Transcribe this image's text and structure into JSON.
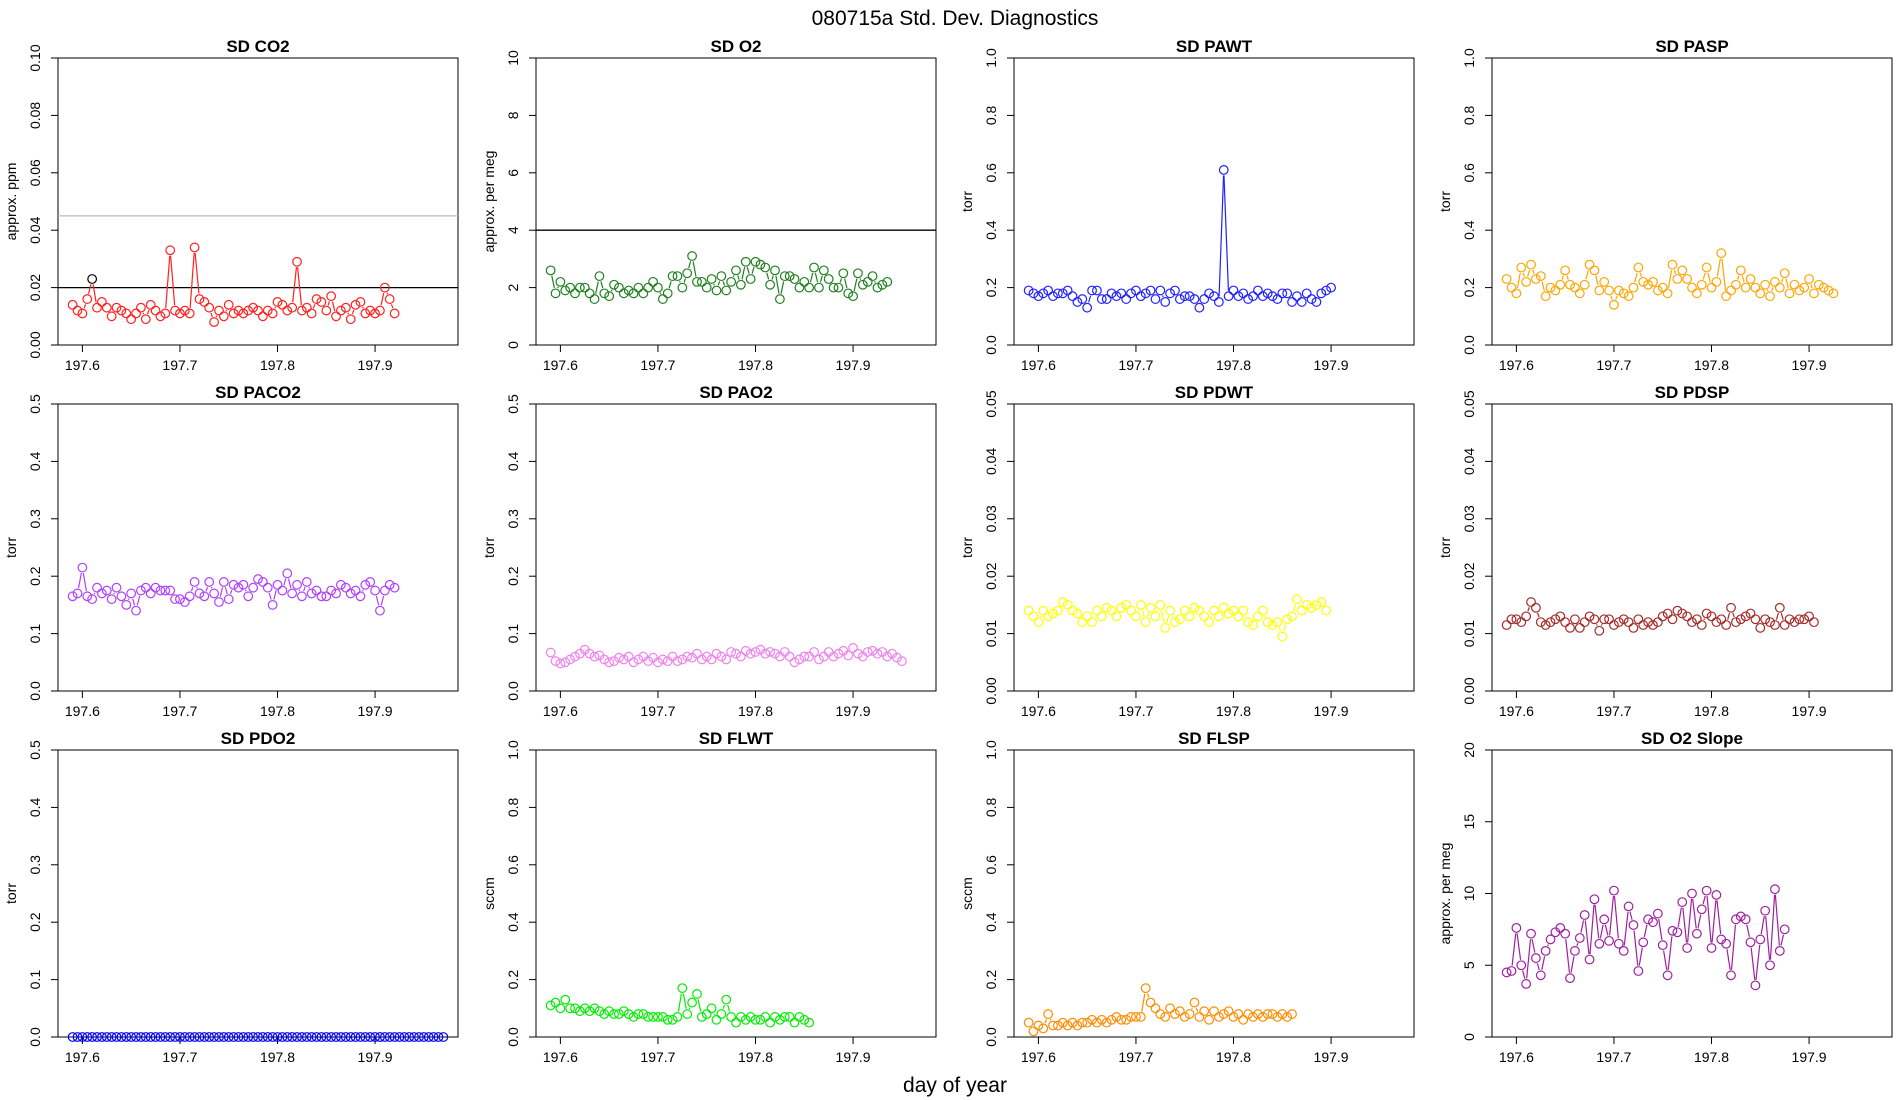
{
  "main_title": "080715a   Std. Dev. Diagnostics",
  "xlabel": "day of year",
  "colors": {
    "co2": "#ff2020",
    "o2": "#208020",
    "pawt": "#2020ff",
    "pasp": "#ffa500",
    "paco2": "#b040ff",
    "pao2": "#ee82ee",
    "pdwt": "#ffff00",
    "pdsp": "#a52a2a",
    "pdo2": "#0000ff",
    "flwt": "#00ee00",
    "flsp": "#ff8c00",
    "o2slope": "#a020a0"
  },
  "chart_data": [
    {
      "type": "line",
      "title": "SD CO2",
      "ylabel": "approx. ppm",
      "xlim": [
        197.575,
        197.985
      ],
      "ylim": [
        0,
        0.1
      ],
      "xticks": [
        "197.6",
        "197.7",
        "197.8",
        "197.9"
      ],
      "yticks": [
        "0.00",
        "0.02",
        "0.04",
        "0.06",
        "0.08",
        "0.10"
      ],
      "hlines": [
        {
          "y": 0.02,
          "color": "#000000"
        },
        {
          "y": 0.045,
          "color": "#bbbbbb"
        }
      ],
      "color": "co2",
      "x0": 197.59,
      "dx": 0.005,
      "values": [
        0.014,
        0.012,
        0.011,
        0.016,
        0.023,
        0.013,
        0.015,
        0.013,
        0.01,
        0.013,
        0.012,
        0.011,
        0.009,
        0.011,
        0.013,
        0.009,
        0.014,
        0.012,
        0.01,
        0.011,
        0.033,
        0.012,
        0.011,
        0.012,
        0.011,
        0.034,
        0.016,
        0.015,
        0.013,
        0.008,
        0.012,
        0.01,
        0.014,
        0.011,
        0.012,
        0.011,
        0.012,
        0.013,
        0.012,
        0.01,
        0.012,
        0.011,
        0.015,
        0.014,
        0.012,
        0.013,
        0.029,
        0.012,
        0.013,
        0.011,
        0.016,
        0.015,
        0.012,
        0.017,
        0.01,
        0.012,
        0.013,
        0.009,
        0.014,
        0.015,
        0.011,
        0.012,
        0.011,
        0.012,
        0.02,
        0.016,
        0.011
      ],
      "special": [
        {
          "index": 4,
          "color": "#000000"
        }
      ]
    },
    {
      "type": "line",
      "title": "SD O2",
      "ylabel": "approx. per meg",
      "xlim": [
        197.575,
        197.985
      ],
      "ylim": [
        0,
        10
      ],
      "xticks": [
        "197.6",
        "197.7",
        "197.8",
        "197.9"
      ],
      "yticks": [
        "0",
        "2",
        "4",
        "6",
        "8",
        "10"
      ],
      "hlines": [
        {
          "y": 4,
          "color": "#000000"
        }
      ],
      "color": "o2",
      "x0": 197.59,
      "dx": 0.005,
      "values": [
        2.6,
        1.8,
        2.2,
        1.9,
        2.0,
        1.8,
        2.0,
        2.0,
        1.8,
        1.6,
        2.4,
        1.8,
        1.7,
        2.1,
        2.0,
        1.8,
        1.9,
        1.8,
        2.0,
        1.8,
        2.0,
        2.2,
        2.0,
        1.6,
        1.8,
        2.4,
        2.4,
        2.0,
        2.5,
        3.1,
        2.2,
        2.2,
        2.0,
        2.3,
        1.9,
        2.4,
        1.9,
        2.2,
        2.6,
        2.1,
        2.9,
        2.3,
        2.9,
        2.8,
        2.7,
        2.1,
        2.6,
        1.6,
        2.4,
        2.4,
        2.3,
        2.0,
        2.2,
        2.0,
        2.7,
        2.0,
        2.6,
        2.3,
        2.0,
        2.0,
        2.5,
        1.8,
        1.7,
        2.5,
        2.1,
        2.2,
        2.4,
        2.0,
        2.1,
        2.2
      ],
      "special": []
    },
    {
      "type": "line",
      "title": "SD PAWT",
      "ylabel": "torr",
      "xlim": [
        197.575,
        197.985
      ],
      "ylim": [
        0,
        1
      ],
      "xticks": [
        "197.6",
        "197.7",
        "197.8",
        "197.9"
      ],
      "yticks": [
        "0.0",
        "0.2",
        "0.4",
        "0.6",
        "0.8",
        "1.0"
      ],
      "hlines": [],
      "color": "pawt",
      "x0": 197.59,
      "dx": 0.005,
      "values": [
        0.19,
        0.18,
        0.17,
        0.18,
        0.19,
        0.17,
        0.18,
        0.18,
        0.19,
        0.17,
        0.15,
        0.16,
        0.13,
        0.19,
        0.19,
        0.16,
        0.16,
        0.18,
        0.17,
        0.18,
        0.16,
        0.18,
        0.19,
        0.17,
        0.18,
        0.19,
        0.16,
        0.19,
        0.15,
        0.18,
        0.19,
        0.16,
        0.17,
        0.17,
        0.16,
        0.13,
        0.16,
        0.18,
        0.17,
        0.15,
        0.61,
        0.17,
        0.19,
        0.17,
        0.18,
        0.16,
        0.17,
        0.19,
        0.17,
        0.18,
        0.17,
        0.16,
        0.18,
        0.18,
        0.15,
        0.17,
        0.15,
        0.18,
        0.16,
        0.15,
        0.18,
        0.19,
        0.2
      ],
      "special": []
    },
    {
      "type": "line",
      "title": "SD PASP",
      "ylabel": "torr",
      "xlim": [
        197.575,
        197.985
      ],
      "ylim": [
        0,
        1
      ],
      "xticks": [
        "197.6",
        "197.7",
        "197.8",
        "197.9"
      ],
      "yticks": [
        "0.0",
        "0.2",
        "0.4",
        "0.6",
        "0.8",
        "1.0"
      ],
      "hlines": [],
      "color": "pasp",
      "x0": 197.59,
      "dx": 0.005,
      "values": [
        0.23,
        0.2,
        0.18,
        0.27,
        0.22,
        0.28,
        0.23,
        0.24,
        0.17,
        0.2,
        0.19,
        0.21,
        0.26,
        0.21,
        0.2,
        0.18,
        0.21,
        0.28,
        0.26,
        0.19,
        0.22,
        0.19,
        0.14,
        0.19,
        0.18,
        0.17,
        0.2,
        0.27,
        0.22,
        0.21,
        0.22,
        0.19,
        0.2,
        0.18,
        0.28,
        0.23,
        0.26,
        0.23,
        0.2,
        0.18,
        0.21,
        0.27,
        0.2,
        0.22,
        0.32,
        0.17,
        0.19,
        0.21,
        0.26,
        0.2,
        0.23,
        0.2,
        0.18,
        0.21,
        0.17,
        0.22,
        0.2,
        0.25,
        0.18,
        0.21,
        0.19,
        0.2,
        0.23,
        0.18,
        0.21,
        0.2,
        0.19,
        0.18
      ],
      "special": []
    },
    {
      "type": "line",
      "title": "SD PACO2",
      "ylabel": "torr",
      "xlim": [
        197.575,
        197.985
      ],
      "ylim": [
        0,
        0.5
      ],
      "xticks": [
        "197.6",
        "197.7",
        "197.8",
        "197.9"
      ],
      "yticks": [
        "0.0",
        "0.1",
        "0.2",
        "0.3",
        "0.4",
        "0.5"
      ],
      "hlines": [],
      "color": "paco2",
      "x0": 197.59,
      "dx": 0.005,
      "values": [
        0.165,
        0.17,
        0.215,
        0.165,
        0.16,
        0.18,
        0.17,
        0.175,
        0.16,
        0.18,
        0.165,
        0.15,
        0.17,
        0.14,
        0.175,
        0.18,
        0.17,
        0.18,
        0.175,
        0.175,
        0.175,
        0.16,
        0.16,
        0.155,
        0.165,
        0.19,
        0.17,
        0.165,
        0.19,
        0.17,
        0.155,
        0.19,
        0.16,
        0.185,
        0.18,
        0.185,
        0.165,
        0.18,
        0.195,
        0.19,
        0.18,
        0.15,
        0.185,
        0.175,
        0.205,
        0.17,
        0.185,
        0.165,
        0.19,
        0.17,
        0.175,
        0.165,
        0.165,
        0.175,
        0.17,
        0.185,
        0.18,
        0.17,
        0.175,
        0.165,
        0.185,
        0.19,
        0.175,
        0.14,
        0.175,
        0.185,
        0.18
      ],
      "special": []
    },
    {
      "type": "line",
      "title": "SD PAO2",
      "ylabel": "torr",
      "xlim": [
        197.575,
        197.985
      ],
      "ylim": [
        0,
        0.5
      ],
      "xticks": [
        "197.6",
        "197.7",
        "197.8",
        "197.9"
      ],
      "yticks": [
        "0.0",
        "0.1",
        "0.2",
        "0.3",
        "0.4",
        "0.5"
      ],
      "hlines": [],
      "color": "pao2",
      "x0": 197.59,
      "dx": 0.005,
      "values": [
        0.067,
        0.052,
        0.048,
        0.05,
        0.055,
        0.06,
        0.065,
        0.072,
        0.065,
        0.06,
        0.062,
        0.055,
        0.05,
        0.052,
        0.058,
        0.055,
        0.06,
        0.05,
        0.055,
        0.06,
        0.052,
        0.058,
        0.05,
        0.055,
        0.052,
        0.06,
        0.052,
        0.055,
        0.06,
        0.058,
        0.065,
        0.055,
        0.06,
        0.055,
        0.065,
        0.06,
        0.055,
        0.068,
        0.065,
        0.06,
        0.07,
        0.065,
        0.068,
        0.072,
        0.065,
        0.068,
        0.065,
        0.06,
        0.068,
        0.06,
        0.05,
        0.055,
        0.06,
        0.06,
        0.068,
        0.055,
        0.06,
        0.068,
        0.06,
        0.065,
        0.07,
        0.062,
        0.075,
        0.065,
        0.06,
        0.068,
        0.07,
        0.065,
        0.068,
        0.06,
        0.065,
        0.058,
        0.052
      ],
      "special": []
    },
    {
      "type": "line",
      "title": "SD PDWT",
      "ylabel": "torr",
      "xlim": [
        197.575,
        197.985
      ],
      "ylim": [
        0,
        0.05
      ],
      "xticks": [
        "197.6",
        "197.7",
        "197.8",
        "197.9"
      ],
      "yticks": [
        "0.00",
        "0.01",
        "0.02",
        "0.03",
        "0.04",
        "0.05"
      ],
      "hlines": [],
      "color": "pdwt",
      "x0": 197.59,
      "dx": 0.005,
      "values": [
        0.014,
        0.013,
        0.012,
        0.014,
        0.013,
        0.0135,
        0.014,
        0.0155,
        0.015,
        0.014,
        0.0135,
        0.012,
        0.013,
        0.012,
        0.014,
        0.013,
        0.0145,
        0.014,
        0.013,
        0.0145,
        0.015,
        0.014,
        0.013,
        0.015,
        0.012,
        0.0145,
        0.013,
        0.015,
        0.011,
        0.014,
        0.012,
        0.0125,
        0.014,
        0.013,
        0.0145,
        0.014,
        0.013,
        0.012,
        0.014,
        0.013,
        0.0145,
        0.0135,
        0.014,
        0.013,
        0.014,
        0.012,
        0.0115,
        0.013,
        0.014,
        0.012,
        0.0115,
        0.012,
        0.0095,
        0.0125,
        0.013,
        0.016,
        0.014,
        0.015,
        0.0145,
        0.015,
        0.0155,
        0.014
      ],
      "special": []
    },
    {
      "type": "line",
      "title": "SD PDSP",
      "ylabel": "torr",
      "xlim": [
        197.575,
        197.985
      ],
      "ylim": [
        0,
        0.05
      ],
      "xticks": [
        "197.6",
        "197.7",
        "197.8",
        "197.9"
      ],
      "yticks": [
        "0.00",
        "0.01",
        "0.02",
        "0.03",
        "0.04",
        "0.05"
      ],
      "hlines": [],
      "color": "pdsp",
      "x0": 197.59,
      "dx": 0.005,
      "values": [
        0.0115,
        0.0125,
        0.0125,
        0.012,
        0.013,
        0.0155,
        0.0145,
        0.012,
        0.0115,
        0.012,
        0.0125,
        0.013,
        0.012,
        0.011,
        0.0125,
        0.011,
        0.012,
        0.013,
        0.0125,
        0.0105,
        0.0125,
        0.0125,
        0.0115,
        0.012,
        0.0125,
        0.012,
        0.011,
        0.0125,
        0.0115,
        0.012,
        0.0115,
        0.012,
        0.013,
        0.0135,
        0.0125,
        0.014,
        0.0135,
        0.013,
        0.012,
        0.0125,
        0.0115,
        0.0135,
        0.013,
        0.012,
        0.0125,
        0.0115,
        0.0145,
        0.012,
        0.0125,
        0.013,
        0.0135,
        0.0125,
        0.011,
        0.0125,
        0.012,
        0.0115,
        0.0145,
        0.0115,
        0.0125,
        0.012,
        0.0125,
        0.0125,
        0.013,
        0.012
      ],
      "special": []
    },
    {
      "type": "line",
      "title": "SD PDO2",
      "ylabel": "torr",
      "xlim": [
        197.575,
        197.985
      ],
      "ylim": [
        0,
        0.5
      ],
      "xticks": [
        "197.6",
        "197.7",
        "197.8",
        "197.9"
      ],
      "yticks": [
        "0.0",
        "0.1",
        "0.2",
        "0.3",
        "0.4",
        "0.5"
      ],
      "hlines": [],
      "color": "pdo2",
      "x0": 197.59,
      "dx": 0.005,
      "values": [
        0,
        0,
        0,
        0,
        0,
        0,
        0,
        0,
        0,
        0,
        0,
        0,
        0,
        0,
        0,
        0,
        0,
        0,
        0,
        0,
        0,
        0,
        0,
        0,
        0,
        0,
        0,
        0,
        0,
        0,
        0,
        0,
        0,
        0,
        0,
        0,
        0,
        0,
        0,
        0,
        0,
        0,
        0,
        0,
        0,
        0,
        0,
        0,
        0,
        0,
        0,
        0,
        0,
        0,
        0,
        0,
        0,
        0,
        0,
        0,
        0,
        0,
        0,
        0,
        0,
        0,
        0,
        0,
        0,
        0,
        0,
        0,
        0,
        0,
        0,
        0,
        0
      ],
      "special": []
    },
    {
      "type": "line",
      "title": "SD FLWT",
      "ylabel": "sccm",
      "xlim": [
        197.575,
        197.985
      ],
      "ylim": [
        0,
        1
      ],
      "xticks": [
        "197.6",
        "197.7",
        "197.8",
        "197.9"
      ],
      "yticks": [
        "0.0",
        "0.2",
        "0.4",
        "0.6",
        "0.8",
        "1.0"
      ],
      "hlines": [],
      "color": "flwt",
      "x0": 197.59,
      "dx": 0.005,
      "values": [
        0.11,
        0.12,
        0.1,
        0.13,
        0.1,
        0.1,
        0.09,
        0.1,
        0.09,
        0.1,
        0.09,
        0.08,
        0.09,
        0.08,
        0.08,
        0.09,
        0.08,
        0.07,
        0.08,
        0.08,
        0.07,
        0.07,
        0.07,
        0.07,
        0.06,
        0.06,
        0.07,
        0.17,
        0.08,
        0.12,
        0.15,
        0.07,
        0.08,
        0.1,
        0.06,
        0.08,
        0.13,
        0.07,
        0.05,
        0.07,
        0.06,
        0.07,
        0.06,
        0.06,
        0.07,
        0.05,
        0.07,
        0.06,
        0.07,
        0.07,
        0.05,
        0.07,
        0.06,
        0.05
      ],
      "special": []
    },
    {
      "type": "line",
      "title": "SD FLSP",
      "ylabel": "sccm",
      "xlim": [
        197.575,
        197.985
      ],
      "ylim": [
        0,
        1
      ],
      "xticks": [
        "197.6",
        "197.7",
        "197.8",
        "197.9"
      ],
      "yticks": [
        "0.0",
        "0.2",
        "0.4",
        "0.6",
        "0.8",
        "1.0"
      ],
      "hlines": [],
      "color": "flsp",
      "x0": 197.59,
      "dx": 0.005,
      "values": [
        0.05,
        0.02,
        0.04,
        0.03,
        0.08,
        0.04,
        0.04,
        0.05,
        0.04,
        0.05,
        0.04,
        0.05,
        0.05,
        0.06,
        0.05,
        0.06,
        0.05,
        0.06,
        0.07,
        0.06,
        0.06,
        0.07,
        0.07,
        0.07,
        0.17,
        0.12,
        0.1,
        0.08,
        0.07,
        0.1,
        0.08,
        0.09,
        0.07,
        0.08,
        0.12,
        0.07,
        0.09,
        0.06,
        0.09,
        0.07,
        0.08,
        0.09,
        0.07,
        0.08,
        0.06,
        0.08,
        0.07,
        0.08,
        0.07,
        0.08,
        0.08,
        0.07,
        0.08,
        0.07,
        0.08
      ],
      "special": []
    },
    {
      "type": "line",
      "title": "SD O2 Slope",
      "ylabel": "approx. per meg",
      "xlim": [
        197.575,
        197.985
      ],
      "ylim": [
        0,
        20
      ],
      "xticks": [
        "197.6",
        "197.7",
        "197.8",
        "197.9"
      ],
      "yticks": [
        "0",
        "5",
        "10",
        "15",
        "20"
      ],
      "hlines": [],
      "color": "o2slope",
      "x0": 197.59,
      "dx": 0.005,
      "values": [
        4.5,
        4.6,
        7.6,
        5.0,
        3.7,
        7.2,
        5.5,
        4.3,
        6.0,
        6.8,
        7.3,
        7.6,
        7.2,
        4.1,
        6.0,
        6.9,
        8.5,
        5.4,
        9.6,
        6.5,
        8.2,
        6.7,
        10.2,
        6.5,
        6.0,
        9.1,
        7.8,
        4.6,
        6.6,
        8.2,
        8.0,
        8.6,
        6.4,
        4.3,
        7.4,
        7.3,
        9.4,
        6.2,
        10.0,
        7.2,
        8.9,
        10.2,
        6.2,
        9.9,
        6.8,
        6.5,
        4.3,
        8.2,
        8.4,
        8.2,
        6.6,
        3.6,
        6.8,
        8.8,
        5.0,
        10.3,
        6.0,
        7.5
      ],
      "special": []
    }
  ]
}
